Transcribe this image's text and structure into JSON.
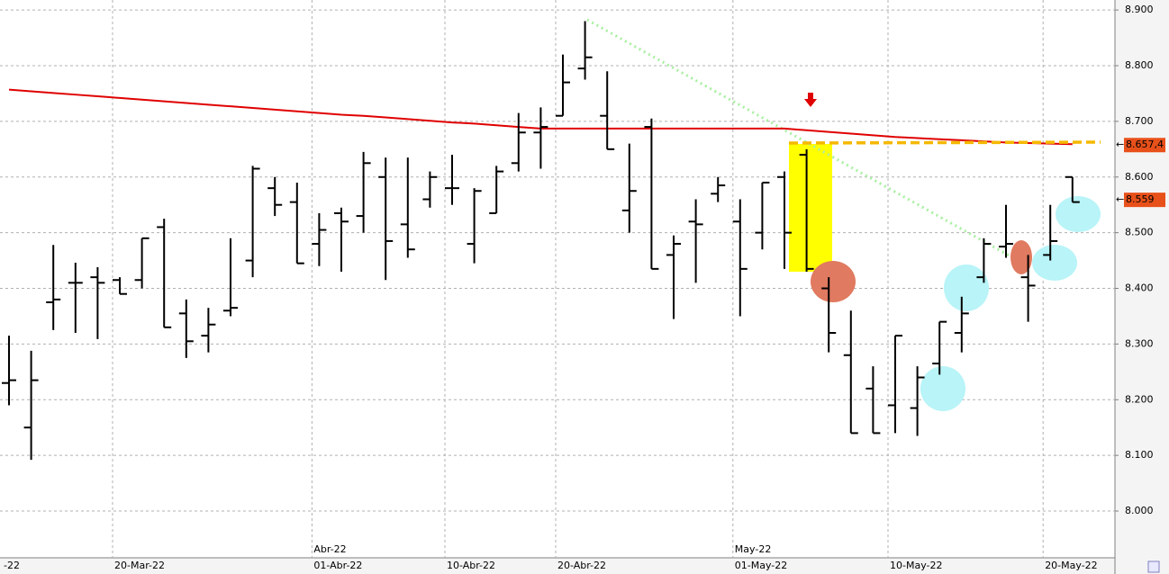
{
  "chart_data": {
    "type": "ohlc",
    "color": "#000000",
    "grid": true,
    "categories": [
      "-22",
      null,
      null,
      null,
      null,
      "20-Mar-22",
      null,
      null,
      null,
      null,
      null,
      null,
      null,
      null,
      "01-Abr-22",
      null,
      null,
      null,
      null,
      null,
      "10-Abr-22",
      null,
      null,
      null,
      null,
      "20-Abr-22",
      null,
      null,
      null,
      null,
      null,
      null,
      null,
      "01-May-22",
      null,
      null,
      null,
      null,
      null,
      null,
      "10-May-22",
      null,
      null,
      null,
      null,
      null,
      null,
      "20-May-22",
      null
    ],
    "month_labels": [
      null,
      null,
      null,
      null,
      null,
      null,
      null,
      null,
      null,
      null,
      null,
      null,
      null,
      null,
      "Abr-22",
      null,
      null,
      null,
      null,
      null,
      null,
      null,
      null,
      null,
      null,
      null,
      null,
      null,
      null,
      null,
      null,
      null,
      null,
      "May-22",
      null,
      null,
      null,
      null,
      null,
      null,
      null,
      null,
      null,
      null,
      null,
      null,
      null,
      null,
      null
    ],
    "open": [
      8.23,
      8.15,
      8.375,
      8.41,
      8.42,
      8.415,
      8.415,
      8.51,
      8.355,
      8.315,
      8.36,
      8.45,
      8.58,
      8.555,
      8.48,
      8.535,
      8.53,
      8.6,
      8.515,
      8.56,
      8.58,
      8.48,
      8.535,
      8.625,
      8.68,
      8.71,
      8.795,
      8.71,
      8.54,
      8.69,
      8.46,
      8.52,
      8.57,
      8.52,
      8.5,
      8.6,
      8.64,
      8.4,
      8.28,
      8.22,
      8.19,
      8.185,
      8.265,
      8.32,
      8.42,
      8.475,
      8.42,
      8.46,
      8.6
    ],
    "high": [
      8.315,
      8.288,
      8.478,
      8.446,
      8.438,
      8.42,
      8.49,
      8.525,
      8.38,
      8.365,
      8.49,
      8.62,
      8.6,
      8.59,
      8.535,
      8.545,
      8.645,
      8.635,
      8.635,
      8.61,
      8.64,
      8.58,
      8.62,
      8.715,
      8.725,
      8.82,
      8.88,
      8.79,
      8.66,
      8.705,
      8.495,
      8.56,
      8.6,
      8.56,
      8.59,
      8.61,
      8.65,
      8.42,
      8.36,
      8.26,
      8.315,
      8.26,
      8.34,
      8.385,
      8.49,
      8.55,
      8.46,
      8.55,
      8.6
    ],
    "low": [
      8.19,
      8.092,
      8.325,
      8.32,
      8.309,
      8.39,
      8.4,
      8.33,
      8.275,
      8.285,
      8.35,
      8.42,
      8.53,
      8.445,
      8.44,
      8.43,
      8.5,
      8.415,
      8.455,
      8.545,
      8.55,
      8.445,
      8.535,
      8.61,
      8.615,
      8.71,
      8.775,
      8.65,
      8.5,
      8.435,
      8.345,
      8.41,
      8.555,
      8.35,
      8.47,
      8.435,
      8.43,
      8.285,
      8.14,
      8.14,
      8.14,
      8.135,
      8.245,
      8.285,
      8.41,
      8.455,
      8.34,
      8.45,
      8.555
    ],
    "close": [
      8.235,
      8.235,
      8.38,
      8.41,
      8.41,
      8.39,
      8.49,
      8.33,
      8.305,
      8.335,
      8.365,
      8.615,
      8.55,
      8.445,
      8.505,
      8.52,
      8.625,
      8.485,
      8.47,
      8.6,
      8.58,
      8.575,
      8.61,
      8.68,
      8.69,
      8.77,
      8.815,
      8.65,
      8.575,
      8.435,
      8.48,
      8.515,
      8.585,
      8.435,
      8.59,
      8.5,
      8.435,
      8.32,
      8.14,
      8.14,
      8.315,
      8.24,
      8.34,
      8.355,
      8.48,
      8.48,
      8.405,
      8.485,
      8.555
    ],
    "moving_average": {
      "color": "#e00000",
      "values": [
        8.757,
        8.754,
        8.751,
        8.748,
        8.745,
        8.742,
        8.739,
        8.736,
        8.733,
        8.73,
        8.727,
        8.724,
        8.721,
        8.718,
        8.715,
        8.712,
        8.71,
        8.707,
        8.704,
        8.701,
        8.698,
        8.696,
        8.693,
        8.69,
        8.687,
        8.687,
        8.687,
        8.687,
        8.687,
        8.687,
        8.687,
        8.687,
        8.687,
        8.687,
        8.687,
        8.687,
        8.684,
        8.681,
        8.678,
        8.675,
        8.672,
        8.67,
        8.668,
        8.666,
        8.664,
        8.662,
        8.661,
        8.66,
        8.659
      ]
    },
    "price_labels": [
      {
        "value": 8.6574,
        "label": "8.657,4",
        "color": "#e8501a"
      },
      {
        "value": 8.559,
        "label": "8.559",
        "color": "#e8501a"
      }
    ],
    "ylim": [
      7.916,
      8.918
    ],
    "yticks": [
      {
        "value": 8.0,
        "label": "8.000"
      },
      {
        "value": 8.1,
        "label": "8.100"
      },
      {
        "value": 8.2,
        "label": "8.200"
      },
      {
        "value": 8.3,
        "label": "8.300"
      },
      {
        "value": 8.4,
        "label": "8.400"
      },
      {
        "value": 8.5,
        "label": "8.500"
      },
      {
        "value": 8.6,
        "label": "8.600"
      },
      {
        "value": 8.7,
        "label": "8.700"
      },
      {
        "value": 8.8,
        "label": "8.800"
      },
      {
        "value": 8.9,
        "label": "8.900"
      }
    ]
  }
}
